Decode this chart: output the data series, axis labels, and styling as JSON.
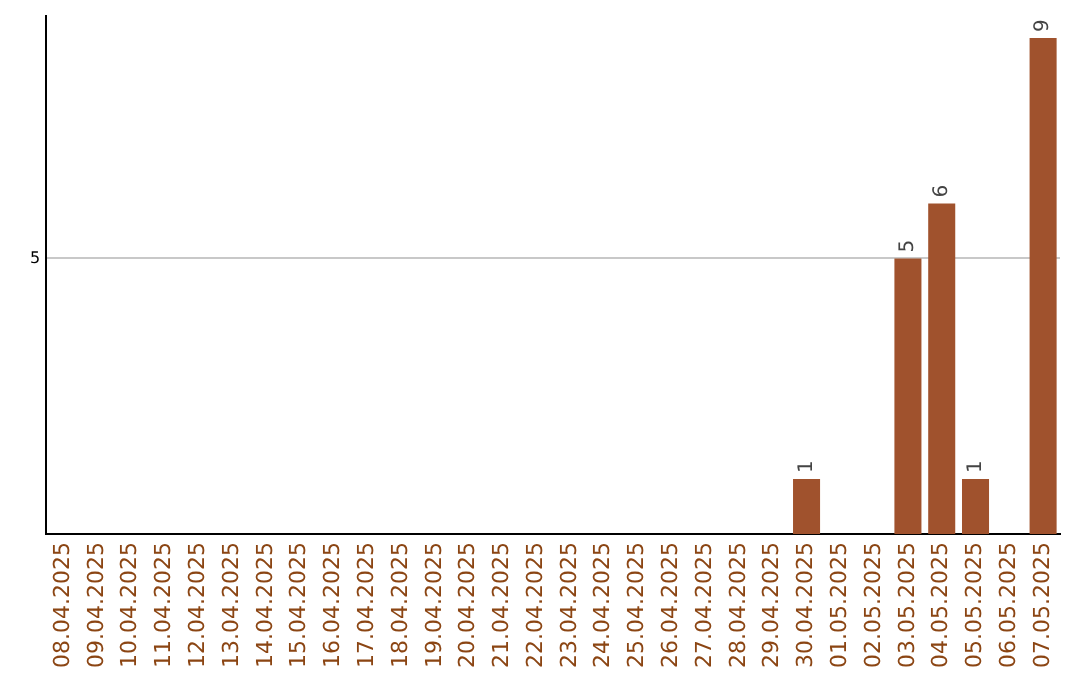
{
  "chart_data": {
    "type": "bar",
    "categories": [
      "08.04.2025",
      "09.04.2025",
      "10.04.2025",
      "11.04.2025",
      "12.04.2025",
      "13.04.2025",
      "14.04.2025",
      "15.04.2025",
      "16.04.2025",
      "17.04.2025",
      "18.04.2025",
      "19.04.2025",
      "20.04.2025",
      "21.04.2025",
      "22.04.2025",
      "23.04.2025",
      "24.04.2025",
      "25.04.2025",
      "26.04.2025",
      "27.04.2025",
      "28.04.2025",
      "29.04.2025",
      "30.04.2025",
      "01.05.2025",
      "02.05.2025",
      "03.05.2025",
      "04.05.2025",
      "05.05.2025",
      "06.05.2025",
      "07.05.2025"
    ],
    "values": [
      null,
      null,
      null,
      null,
      null,
      null,
      null,
      null,
      null,
      null,
      null,
      null,
      null,
      null,
      null,
      null,
      null,
      null,
      null,
      null,
      null,
      null,
      1,
      null,
      null,
      5,
      6,
      1,
      null,
      9
    ],
    "data_labels": true,
    "color": "#a0522d",
    "ylim": [
      0,
      9.4
    ],
    "yticks": [
      5
    ],
    "grid": "y",
    "legend": false
  }
}
